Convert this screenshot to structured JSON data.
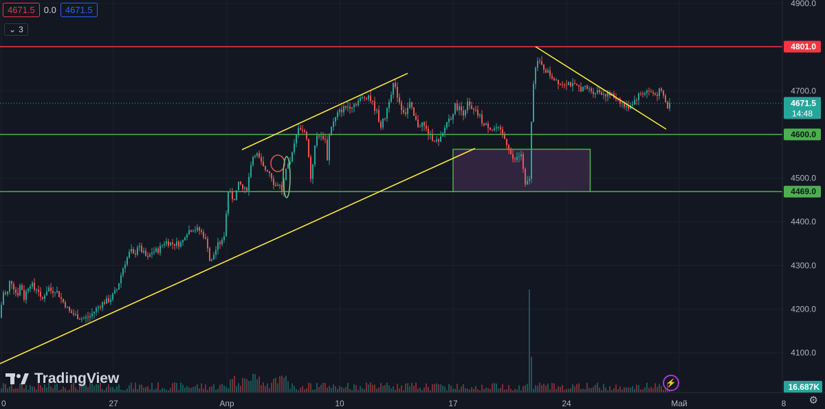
{
  "header": {
    "ohlc_open": "4671.5",
    "ohlc_change": "0.0",
    "ohlc_close": "4671.5",
    "indicator_count": "3"
  },
  "price_tags": {
    "resistance": "4801.0",
    "current": "4671.5",
    "countdown": "14:48",
    "support_upper": "4600.0",
    "support_lower": "4469.0",
    "volume": "16.687K"
  },
  "colors": {
    "bg": "#131722",
    "up": "#26a69a",
    "down": "#ef5350",
    "resistance": "#f23645",
    "support": "#4caf50",
    "trend": "#ffeb3b",
    "zone_fill": "#3b2a4a"
  },
  "logo": {
    "text": "TradingView"
  },
  "icons": [
    "tradingview-logo-icon",
    "flash-icon",
    "gear-icon"
  ],
  "chart_data": {
    "type": "candlestick",
    "y_axis": {
      "ticks": [
        "4900.0",
        "4800.0",
        "4700.0",
        "4600.0",
        "4500.0",
        "4400.0",
        "4300.0",
        "4200.0",
        "4100.0"
      ],
      "ylim": [
        4055,
        4905
      ]
    },
    "x_axis": {
      "ticks": [
        "0",
        "27",
        "Апр",
        "10",
        "17",
        "24",
        "Май",
        "8"
      ]
    },
    "horizontal_levels": [
      {
        "value": 4801.0,
        "role": "resistance"
      },
      {
        "value": 4600.0,
        "role": "support"
      },
      {
        "value": 4469.0,
        "role": "support"
      }
    ],
    "current_price": 4671.5,
    "trendlines": [
      {
        "from": [
          "0",
          4075
        ],
        "to": [
          "17+2",
          4568
        ]
      },
      {
        "from": [
          "Апр+2",
          4565
        ],
        "to": [
          "10+6",
          4740
        ]
      },
      {
        "from": [
          "24-3",
          4801
        ],
        "to": [
          "30",
          4612
        ]
      }
    ],
    "zone": {
      "x_from": "17",
      "x_to": "24+2",
      "y_from": 4469,
      "y_to": 4566
    },
    "close_path": [
      [
        0,
        4180
      ],
      [
        4,
        4240
      ],
      [
        10,
        4230
      ],
      [
        15,
        4270
      ],
      [
        20,
        4250
      ],
      [
        25,
        4230
      ],
      [
        30,
        4260
      ],
      [
        35,
        4225
      ],
      [
        40,
        4250
      ],
      [
        45,
        4260
      ],
      [
        50,
        4245
      ],
      [
        55,
        4250
      ],
      [
        60,
        4215
      ],
      [
        65,
        4235
      ],
      [
        70,
        4250
      ],
      [
        75,
        4240
      ],
      [
        80,
        4245
      ],
      [
        85,
        4235
      ],
      [
        90,
        4220
      ],
      [
        95,
        4210
      ],
      [
        100,
        4195
      ],
      [
        110,
        4185
      ],
      [
        120,
        4178
      ],
      [
        130,
        4182
      ],
      [
        140,
        4200
      ],
      [
        150,
        4215
      ],
      [
        160,
        4222
      ],
      [
        170,
        4245
      ],
      [
        180,
        4300
      ],
      [
        190,
        4335
      ],
      [
        195,
        4320
      ],
      [
        200,
        4345
      ],
      [
        210,
        4325
      ],
      [
        215,
        4315
      ],
      [
        220,
        4330
      ],
      [
        230,
        4335
      ],
      [
        240,
        4355
      ],
      [
        250,
        4350
      ],
      [
        260,
        4350
      ],
      [
        265,
        4352
      ],
      [
        270,
        4375
      ],
      [
        280,
        4385
      ],
      [
        290,
        4380
      ],
      [
        296,
        4370
      ],
      [
        302,
        4345
      ],
      [
        306,
        4300
      ],
      [
        312,
        4330
      ],
      [
        318,
        4350
      ],
      [
        325,
        4355
      ],
      [
        332,
        4470
      ],
      [
        340,
        4450
      ],
      [
        348,
        4490
      ],
      [
        355,
        4470
      ],
      [
        360,
        4480
      ],
      [
        366,
        4545
      ],
      [
        372,
        4560
      ],
      [
        378,
        4540
      ],
      [
        384,
        4520
      ],
      [
        390,
        4520
      ],
      [
        396,
        4500
      ],
      [
        400,
        4480
      ],
      [
        405,
        4490
      ],
      [
        410,
        4470
      ],
      [
        416,
        4515
      ],
      [
        422,
        4535
      ],
      [
        428,
        4575
      ],
      [
        434,
        4620
      ],
      [
        440,
        4610
      ],
      [
        446,
        4595
      ],
      [
        452,
        4500
      ],
      [
        458,
        4570
      ],
      [
        462,
        4605
      ],
      [
        468,
        4590
      ],
      [
        472,
        4600
      ],
      [
        476,
        4545
      ],
      [
        480,
        4615
      ],
      [
        486,
        4630
      ],
      [
        492,
        4650
      ],
      [
        500,
        4660
      ],
      [
        508,
        4665
      ],
      [
        516,
        4670
      ],
      [
        524,
        4680
      ],
      [
        530,
        4685
      ],
      [
        536,
        4690
      ],
      [
        542,
        4670
      ],
      [
        548,
        4650
      ],
      [
        554,
        4620
      ],
      [
        560,
        4640
      ],
      [
        566,
        4680
      ],
      [
        572,
        4715
      ],
      [
        578,
        4690
      ],
      [
        584,
        4660
      ],
      [
        590,
        4650
      ],
      [
        596,
        4670
      ],
      [
        602,
        4640
      ],
      [
        608,
        4620
      ],
      [
        614,
        4625
      ],
      [
        620,
        4610
      ],
      [
        626,
        4595
      ],
      [
        632,
        4590
      ],
      [
        638,
        4580
      ],
      [
        644,
        4600
      ],
      [
        650,
        4630
      ],
      [
        656,
        4640
      ],
      [
        662,
        4665
      ],
      [
        668,
        4660
      ],
      [
        674,
        4650
      ],
      [
        680,
        4670
      ],
      [
        686,
        4655
      ],
      [
        692,
        4650
      ],
      [
        698,
        4640
      ],
      [
        704,
        4620
      ],
      [
        710,
        4620
      ],
      [
        716,
        4612
      ],
      [
        722,
        4615
      ],
      [
        728,
        4605
      ],
      [
        734,
        4590
      ],
      [
        740,
        4570
      ],
      [
        746,
        4540
      ],
      [
        752,
        4545
      ],
      [
        758,
        4555
      ],
      [
        764,
        4480
      ],
      [
        770,
        4500
      ],
      [
        775,
        4710
      ],
      [
        780,
        4770
      ],
      [
        786,
        4760
      ],
      [
        792,
        4750
      ],
      [
        798,
        4740
      ],
      [
        804,
        4730
      ],
      [
        810,
        4725
      ],
      [
        816,
        4715
      ],
      [
        822,
        4720
      ],
      [
        828,
        4718
      ],
      [
        834,
        4710
      ],
      [
        840,
        4708
      ],
      [
        846,
        4705
      ],
      [
        852,
        4706
      ],
      [
        858,
        4702
      ],
      [
        864,
        4698
      ],
      [
        870,
        4700
      ],
      [
        876,
        4695
      ],
      [
        882,
        4692
      ],
      [
        888,
        4690
      ],
      [
        894,
        4685
      ],
      [
        900,
        4680
      ],
      [
        906,
        4668
      ],
      [
        912,
        4660
      ],
      [
        918,
        4670
      ],
      [
        924,
        4680
      ],
      [
        930,
        4692
      ],
      [
        936,
        4695
      ],
      [
        942,
        4700
      ],
      [
        948,
        4695
      ],
      [
        954,
        4690
      ],
      [
        960,
        4700
      ],
      [
        966,
        4685
      ],
      [
        970,
        4660
      ],
      [
        976,
        4672
      ]
    ]
  }
}
